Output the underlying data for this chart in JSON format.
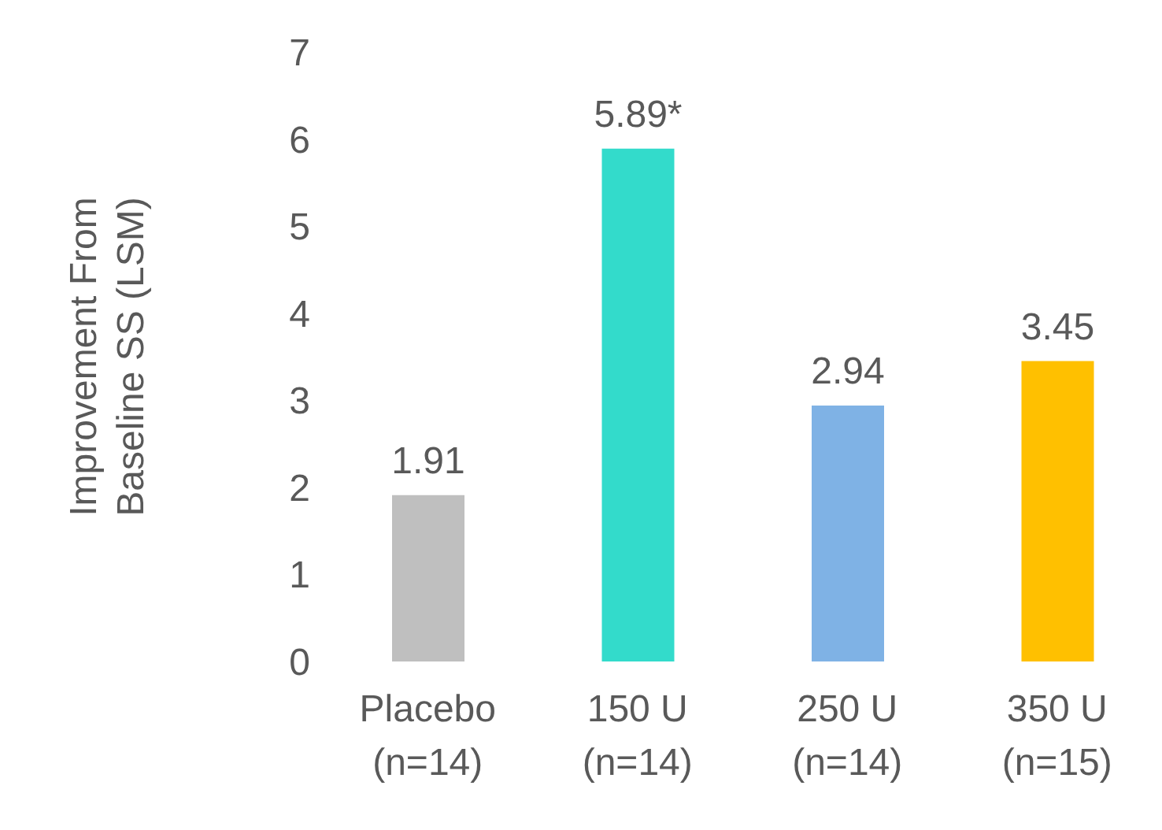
{
  "chart_data": {
    "type": "bar",
    "ylabel": "Improvement From\nBaseline SS (LSM)",
    "categories": [
      "Placebo\n(n=14)",
      "150 U\n(n=14)",
      "250 U\n(n=14)",
      "350 U\n(n=15)"
    ],
    "values": [
      1.91,
      5.89,
      2.94,
      3.45
    ],
    "colors": [
      "#bfbfbf",
      "#33dbcb",
      "#7fb2e5",
      "#ffc000"
    ],
    "value_labels": [
      "1.91",
      "5.89*",
      "2.94",
      "3.45"
    ],
    "ylim": [
      0,
      7
    ],
    "yticks": [
      0,
      1,
      2,
      3,
      4,
      5,
      6,
      7
    ],
    "grid": false
  }
}
